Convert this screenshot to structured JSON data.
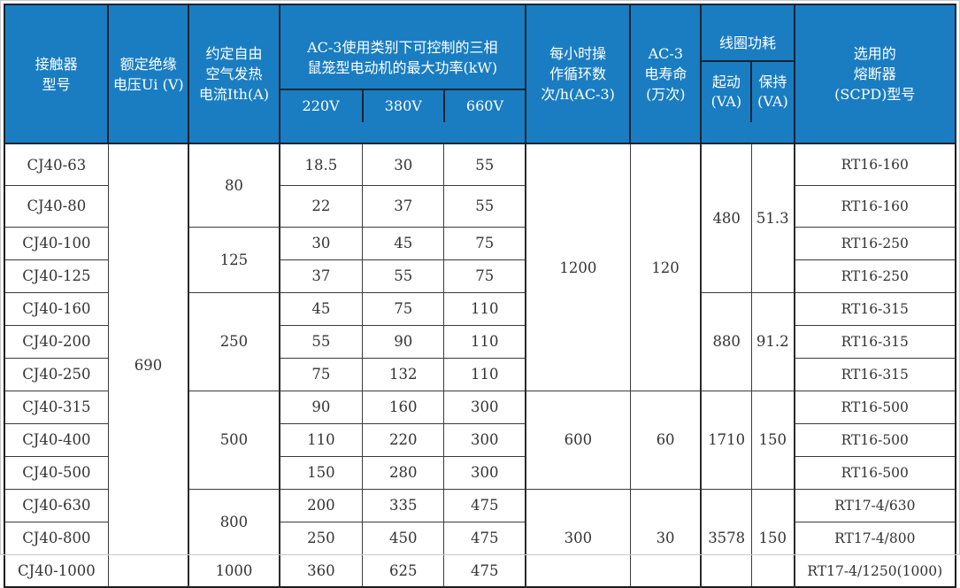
{
  "colors": {
    "header_bg": "#1a7dc2",
    "header_text": "#ffffff",
    "header_border": "#142433",
    "body_border": "#3b3b3b",
    "body_text": "#333333",
    "outer_border": "#1c1c1c"
  },
  "table": {
    "header": {
      "model": "接触器\n型号",
      "rated_voltage": "额定绝缘\n电压Ui (V)",
      "thermal_current": "约定自由\n空气发热\n电流Ith(A)",
      "power_group": {
        "title": "AC-3使用类别下可控制的三相\n鼠笼型电动机的最大功率(kW)",
        "subs": [
          "220V",
          "380V",
          "660V"
        ]
      },
      "cycles": "每小时操\n作循环数\n次/h(AC-3)",
      "life": "AC-3\n电寿命\n(万次)",
      "coil_group": {
        "title": "线圈功耗",
        "subs": [
          "起动\n(VA)",
          "保持\n(VA)"
        ]
      },
      "fuse": "选用的\n熔断器\n(SCPD)型号"
    },
    "rows": [
      {
        "cells": [
          {
            "t": "CJ40-63"
          },
          {
            "t": "690",
            "rs": 13
          },
          {
            "t": "80",
            "rs": 2
          },
          {
            "t": "18.5"
          },
          {
            "t": "30"
          },
          {
            "t": "55"
          },
          {
            "t": "1200",
            "rs": 7
          },
          {
            "t": "120",
            "rs": 7
          },
          {
            "t": "480",
            "rs": 4
          },
          {
            "t": "51.3",
            "rs": 4
          },
          {
            "t": "RT16-160"
          }
        ]
      },
      {
        "cells": [
          {
            "t": "CJ40-80"
          },
          {
            "t": "22"
          },
          {
            "t": "37"
          },
          {
            "t": "55"
          },
          {
            "t": "RT16-160"
          }
        ]
      },
      {
        "cells": [
          {
            "t": "CJ40-100"
          },
          {
            "t": "125",
            "rs": 2
          },
          {
            "t": "30"
          },
          {
            "t": "45"
          },
          {
            "t": "75"
          },
          {
            "t": "RT16-250"
          }
        ]
      },
      {
        "cells": [
          {
            "t": "CJ40-125"
          },
          {
            "t": "37"
          },
          {
            "t": "55"
          },
          {
            "t": "75"
          },
          {
            "t": "RT16-250"
          }
        ]
      },
      {
        "cells": [
          {
            "t": "CJ40-160"
          },
          {
            "t": "250",
            "rs": 3
          },
          {
            "t": "45"
          },
          {
            "t": "75"
          },
          {
            "t": "110"
          },
          {
            "t": "880",
            "rs": 3
          },
          {
            "t": "91.2",
            "rs": 3
          },
          {
            "t": "RT16-315"
          }
        ]
      },
      {
        "cells": [
          {
            "t": "CJ40-200"
          },
          {
            "t": "55"
          },
          {
            "t": "90"
          },
          {
            "t": "110"
          },
          {
            "t": "RT16-315"
          }
        ]
      },
      {
        "cells": [
          {
            "t": "CJ40-250"
          },
          {
            "t": "75"
          },
          {
            "t": "132"
          },
          {
            "t": "110"
          },
          {
            "t": "RT16-315"
          }
        ]
      },
      {
        "cells": [
          {
            "t": "CJ40-315"
          },
          {
            "t": "500",
            "rs": 3
          },
          {
            "t": "90"
          },
          {
            "t": "160"
          },
          {
            "t": "300"
          },
          {
            "t": "600",
            "rs": 3
          },
          {
            "t": "60",
            "rs": 3
          },
          {
            "t": "1710",
            "rs": 3
          },
          {
            "t": "150",
            "rs": 3
          },
          {
            "t": "RT16-500"
          }
        ]
      },
      {
        "cells": [
          {
            "t": "CJ40-400"
          },
          {
            "t": "110"
          },
          {
            "t": "220"
          },
          {
            "t": "300"
          },
          {
            "t": "RT16-500"
          }
        ]
      },
      {
        "cells": [
          {
            "t": "CJ40-500"
          },
          {
            "t": "150"
          },
          {
            "t": "280"
          },
          {
            "t": "300"
          },
          {
            "t": "RT16-500"
          }
        ]
      },
      {
        "cells": [
          {
            "t": "CJ40-630"
          },
          {
            "t": "800",
            "rs": 2
          },
          {
            "t": "200"
          },
          {
            "t": "335"
          },
          {
            "t": "475"
          },
          {
            "t": "300",
            "rs": 3
          },
          {
            "t": "30",
            "rs": 3
          },
          {
            "t": "3578",
            "rs": 3
          },
          {
            "t": "150",
            "rs": 3
          },
          {
            "t": "RT17-4/630"
          }
        ]
      },
      {
        "cells": [
          {
            "t": "CJ40-800"
          },
          {
            "t": "250"
          },
          {
            "t": "450"
          },
          {
            "t": "475"
          },
          {
            "t": "RT17-4/800"
          }
        ]
      },
      {
        "cells": [
          {
            "t": "CJ40-1000"
          },
          {
            "t": "1000"
          },
          {
            "t": "360"
          },
          {
            "t": "625"
          },
          {
            "t": "475"
          },
          {
            "t": "RT17-4/1250(1000)"
          }
        ]
      }
    ]
  }
}
